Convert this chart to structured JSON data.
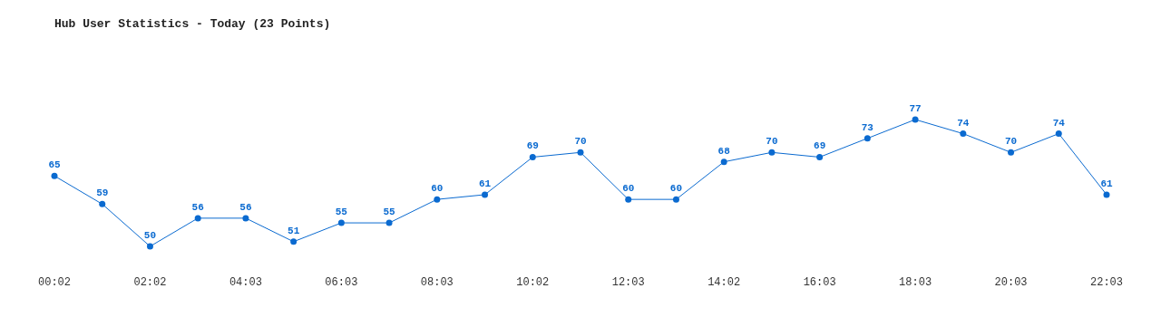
{
  "chart_data": {
    "type": "line",
    "title": "Hub User Statistics - Today (23 Points)",
    "categories": [
      "00:02",
      null,
      "02:02",
      null,
      "04:03",
      null,
      "06:03",
      null,
      "08:03",
      null,
      "10:02",
      null,
      "12:03",
      null,
      "14:02",
      null,
      "16:03",
      null,
      "18:03",
      null,
      "20:03",
      null,
      "22:03"
    ],
    "series": [
      {
        "color": "#0a6ad0",
        "values": [
          65,
          59,
          50,
          56,
          56,
          51,
          55,
          55,
          60,
          61,
          69,
          70,
          60,
          60,
          68,
          70,
          69,
          73,
          77,
          74,
          70,
          74,
          61
        ]
      }
    ],
    "data_labels": true,
    "marker": "circle",
    "line_style": "solid"
  }
}
